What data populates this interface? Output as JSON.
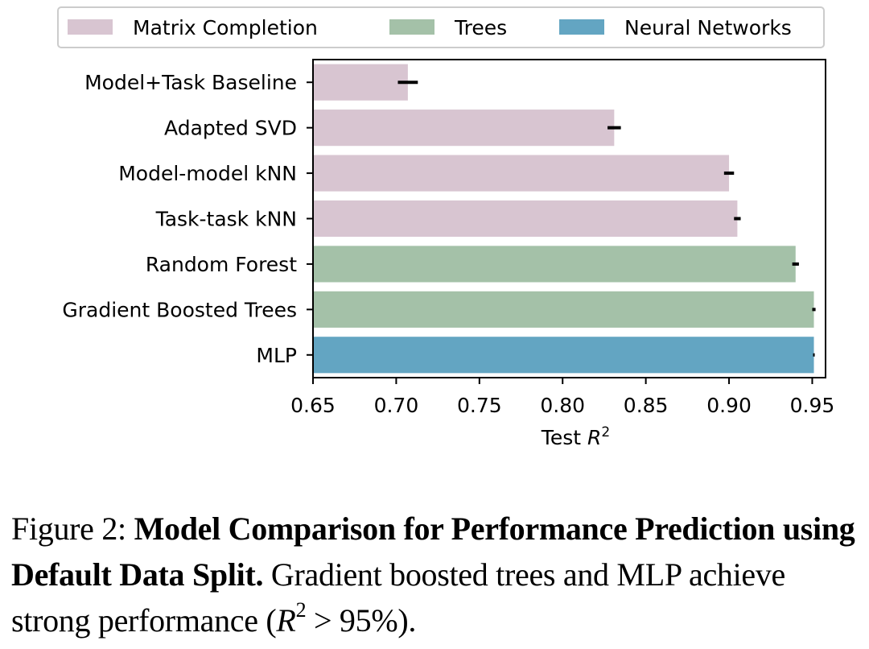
{
  "chart_data": {
    "type": "bar",
    "orientation": "horizontal",
    "categories": [
      "Model+Task Baseline",
      "Adapted SVD",
      "Model-model kNN",
      "Task-task kNN",
      "Random Forest",
      "Gradient Boosted Trees",
      "MLP"
    ],
    "values": [
      0.707,
      0.831,
      0.9,
      0.905,
      0.94,
      0.951,
      0.951
    ],
    "errors": [
      0.006,
      0.004,
      0.003,
      0.002,
      0.002,
      0.001,
      0.0005
    ],
    "groups": [
      "Matrix Completion",
      "Matrix Completion",
      "Matrix Completion",
      "Matrix Completion",
      "Trees",
      "Trees",
      "Neural Networks"
    ],
    "legend": [
      {
        "name": "Matrix Completion",
        "color": "#d8c5d1"
      },
      {
        "name": "Trees",
        "color": "#a4c1a8"
      },
      {
        "name": "Neural Networks",
        "color": "#63a5c2"
      }
    ],
    "legend_position": "top",
    "xlabel": "Test R²",
    "xlabel_text": "Test ",
    "xlabel_var": "R",
    "xlabel_sup": "2",
    "xlim": [
      0.65,
      0.958
    ],
    "xticks": [
      0.65,
      0.7,
      0.75,
      0.8,
      0.85,
      0.9,
      0.95
    ],
    "xtick_labels": [
      "0.65",
      "0.70",
      "0.75",
      "0.80",
      "0.85",
      "0.90",
      "0.95"
    ],
    "grid": false,
    "error_bar_color": "#000000"
  },
  "caption": {
    "prefix": "Figure 2: ",
    "title": "Model Comparison for Performance Prediction using Default Data Split.",
    "body_before": " Gradient boosted trees and MLP achieve strong performance (",
    "math_var": "R",
    "math_sup": "2",
    "math_rest": " > 95%)."
  }
}
